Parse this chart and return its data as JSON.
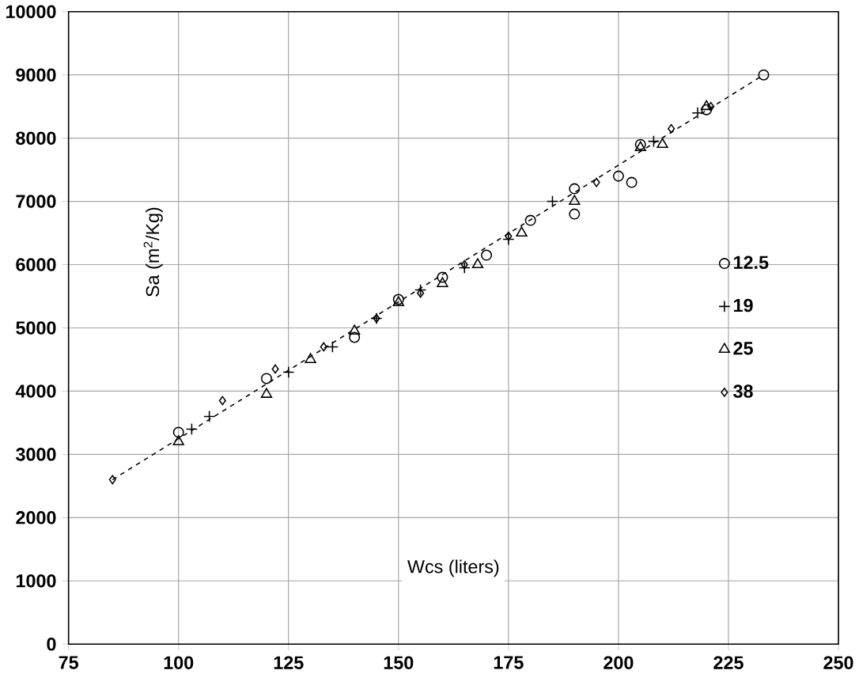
{
  "chart_data": {
    "type": "scatter",
    "xlabel": "Wcs (liters)",
    "ylabel": "Sa (m$^{2}$/Kg)",
    "xlim": [
      75,
      250
    ],
    "ylim": [
      0,
      10000
    ],
    "xticks": [
      75,
      100,
      125,
      150,
      175,
      200,
      225,
      250
    ],
    "yticks": [
      0,
      1000,
      2000,
      3000,
      4000,
      5000,
      6000,
      7000,
      8000,
      9000,
      10000
    ],
    "grid": true,
    "legend": "right",
    "series": [
      {
        "name": "12.5",
        "color": "#000000",
        "marker": "circle",
        "x": [
          100,
          120,
          140,
          150,
          160,
          170,
          180,
          190,
          190,
          200,
          203,
          205,
          220,
          233
        ],
        "values": [
          3350,
          4200,
          4850,
          5450,
          5800,
          6150,
          6700,
          6800,
          7200,
          7400,
          7300,
          7900,
          8450,
          9000
        ]
      },
      {
        "name": "19",
        "color": "#000000",
        "marker": "cross",
        "x": [
          103,
          107,
          125,
          135,
          145,
          155,
          165,
          175,
          185,
          208,
          218
        ],
        "values": [
          3400,
          3600,
          4300,
          4700,
          5150,
          5600,
          5950,
          6400,
          7000,
          7950,
          8400
        ]
      },
      {
        "name": "25",
        "color": "#000000",
        "marker": "triangle",
        "x": [
          100,
          120,
          130,
          140,
          150,
          160,
          168,
          178,
          190,
          205,
          210,
          220
        ],
        "values": [
          3200,
          3950,
          4500,
          4950,
          5400,
          5700,
          6000,
          6500,
          7000,
          7850,
          7900,
          8500
        ]
      },
      {
        "name": "38",
        "color": "#000000",
        "marker": "diamond",
        "x": [
          85,
          110,
          122,
          133,
          145,
          155,
          165,
          175,
          195,
          212,
          221
        ],
        "values": [
          2600,
          3850,
          4350,
          4700,
          5150,
          5550,
          6000,
          6450,
          7300,
          8150,
          8500
        ]
      },
      {
        "type": "line",
        "color": "#000000",
        "line_style": "dashed",
        "marker": "none",
        "x": [
          85,
          233
        ],
        "values": [
          2600,
          9000
        ]
      }
    ]
  }
}
